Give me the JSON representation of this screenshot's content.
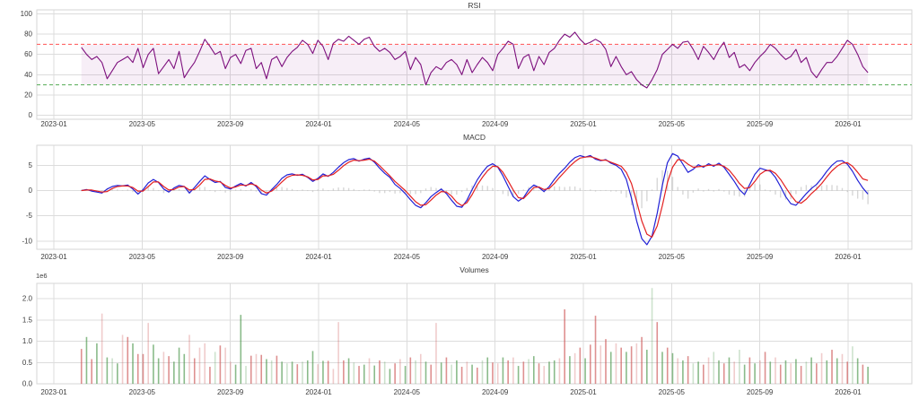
{
  "page": {
    "background": "#ffffff"
  },
  "axes": {
    "text_color": "#3c3c3c",
    "grid_color": "#dcdcdc",
    "spine_color": "#d6d6d6",
    "x_tick_labels": [
      "2023-01",
      "2023-05",
      "2023-09",
      "2024-01",
      "2024-05",
      "2024-09",
      "2025-01",
      "2025-05",
      "2025-09",
      "2026-01"
    ],
    "x_tick_months": [
      0,
      4,
      8,
      12,
      16,
      20,
      24,
      28,
      32,
      36
    ],
    "data_start_month": 1.25,
    "data_end_month": 36.9
  },
  "chart_data": [
    {
      "type": "line",
      "title": "RSI",
      "ylim": [
        -4,
        104
      ],
      "ytick_values": [
        0,
        20,
        40,
        60,
        80,
        100
      ],
      "ytick_labels": [
        "0",
        "20",
        "40",
        "60",
        "80",
        "100"
      ],
      "overbought_level": 70,
      "oversold_level": 30,
      "band": [
        30,
        70
      ],
      "colors": {
        "line": "#7d0f7d",
        "overbought": "#ff6666",
        "oversold": "#66b366",
        "band": "rgba(140,20,140,0.07)"
      },
      "values": [
        67,
        60,
        55,
        58,
        52,
        36,
        44,
        52,
        55,
        58,
        52,
        66,
        47,
        60,
        66,
        41,
        48,
        55,
        46,
        63,
        37,
        45,
        52,
        63,
        75,
        68,
        60,
        63,
        46,
        57,
        60,
        51,
        64,
        66,
        46,
        52,
        36,
        55,
        58,
        48,
        57,
        63,
        67,
        74,
        70,
        61,
        74,
        68,
        55,
        71,
        75,
        73,
        78,
        74,
        70,
        75,
        77,
        68,
        63,
        66,
        62,
        55,
        58,
        63,
        45,
        57,
        50,
        30,
        42,
        48,
        45,
        52,
        55,
        50,
        40,
        55,
        42,
        50,
        57,
        52,
        44,
        60,
        66,
        73,
        70,
        46,
        57,
        60,
        44,
        58,
        50,
        62,
        66,
        74,
        80,
        77,
        82,
        75,
        70,
        72,
        75,
        72,
        65,
        48,
        58,
        48,
        40,
        43,
        35,
        30,
        27,
        35,
        45,
        60,
        65,
        70,
        66,
        72,
        73,
        65,
        55,
        68,
        62,
        55,
        65,
        72,
        57,
        62,
        47,
        50,
        44,
        52,
        58,
        63,
        70,
        66,
        60,
        55,
        58,
        65,
        52,
        57,
        43,
        37,
        45,
        52,
        52,
        58,
        66,
        74,
        70,
        60,
        48,
        42
      ]
    },
    {
      "type": "line",
      "title": "MACD",
      "ylim": [
        -11.6,
        8.94
      ],
      "ytick_values": [
        -10,
        -5,
        0,
        5
      ],
      "ytick_labels": [
        "-10",
        "-5",
        "0",
        "5"
      ],
      "hist_color": "rgba(140,140,140,0.35)",
      "series": [
        {
          "name": "macd",
          "color": "#2121d6",
          "values": [
            0.0,
            0.2,
            -0.1,
            -0.3,
            -0.5,
            0.3,
            0.8,
            1.0,
            0.9,
            1.1,
            0.3,
            -0.7,
            0.2,
            1.5,
            2.2,
            1.6,
            0.3,
            -0.3,
            0.5,
            1.0,
            0.8,
            -0.5,
            0.6,
            1.8,
            2.9,
            2.2,
            1.6,
            1.8,
            0.6,
            0.3,
            0.9,
            1.4,
            0.9,
            1.6,
            0.8,
            -0.6,
            -0.9,
            0.2,
            1.2,
            2.4,
            3.1,
            3.3,
            3.0,
            3.2,
            2.6,
            1.8,
            2.4,
            3.3,
            2.8,
            3.6,
            4.6,
            5.5,
            6.1,
            6.3,
            5.8,
            6.2,
            6.4,
            5.6,
            4.4,
            3.4,
            2.6,
            1.2,
            0.4,
            -0.6,
            -1.8,
            -2.9,
            -3.4,
            -2.4,
            -1.2,
            -0.4,
            0.3,
            -0.6,
            -1.9,
            -3.1,
            -3.3,
            -1.9,
            0.2,
            2.1,
            3.6,
            4.8,
            5.3,
            4.6,
            2.9,
            0.8,
            -1.2,
            -2.1,
            -1.4,
            0.2,
            1.1,
            0.6,
            -0.2,
            0.8,
            2.2,
            3.4,
            4.4,
            5.6,
            6.5,
            6.9,
            6.6,
            6.9,
            6.2,
            5.9,
            6.1,
            5.4,
            5.0,
            4.2,
            2.2,
            -1.5,
            -6.0,
            -9.5,
            -10.7,
            -9.0,
            -4.5,
            1.0,
            5.5,
            7.3,
            6.8,
            5.2,
            3.6,
            4.2,
            5.1,
            4.6,
            5.3,
            4.8,
            5.4,
            4.6,
            3.2,
            1.8,
            0.2,
            -0.8,
            1.2,
            3.2,
            4.4,
            4.1,
            3.8,
            2.6,
            0.8,
            -1.2,
            -2.6,
            -2.9,
            -1.8,
            -0.6,
            0.4,
            1.2,
            2.4,
            3.8,
            5.0,
            5.8,
            5.9,
            5.2,
            3.8,
            2.0,
            0.5,
            -0.7
          ]
        },
        {
          "name": "signal",
          "color": "#e32020",
          "values": [
            0.0,
            0.1,
            0.1,
            -0.1,
            -0.3,
            -0.2,
            0.4,
            0.8,
            0.9,
            0.9,
            0.6,
            -0.1,
            -0.1,
            0.8,
            1.7,
            1.7,
            0.8,
            0.1,
            0.2,
            0.7,
            0.8,
            0.1,
            0.2,
            1.1,
            2.2,
            2.3,
            1.9,
            1.7,
            1.0,
            0.5,
            0.7,
            1.1,
            1.0,
            1.3,
            1.0,
            0.1,
            -0.5,
            -0.1,
            0.7,
            1.7,
            2.6,
            3.0,
            3.1,
            3.0,
            2.7,
            2.1,
            2.2,
            2.9,
            2.9,
            3.2,
            4.0,
            4.9,
            5.6,
            6.0,
            5.9,
            6.0,
            6.2,
            5.8,
            4.9,
            3.9,
            2.9,
            1.8,
            0.9,
            0.0,
            -1.1,
            -2.2,
            -2.9,
            -2.8,
            -1.9,
            -0.9,
            -0.2,
            -0.3,
            -1.1,
            -2.3,
            -3.0,
            -2.4,
            -0.8,
            1.1,
            2.6,
            3.9,
            4.8,
            4.7,
            3.6,
            1.9,
            0.1,
            -1.4,
            -1.6,
            -0.5,
            0.6,
            0.7,
            0.2,
            0.4,
            1.4,
            2.6,
            3.7,
            4.8,
            5.7,
            6.4,
            6.6,
            6.7,
            6.4,
            6.0,
            6.0,
            5.6,
            5.2,
            4.8,
            3.6,
            1.4,
            -2.2,
            -6.0,
            -8.6,
            -9.2,
            -7.0,
            -3.0,
            1.6,
            4.6,
            6.1,
            6.0,
            5.2,
            4.6,
            4.7,
            4.8,
            5.0,
            5.0,
            5.1,
            4.8,
            4.0,
            2.8,
            1.4,
            0.4,
            0.6,
            1.8,
            3.2,
            3.9,
            4.0,
            3.4,
            2.2,
            0.6,
            -0.9,
            -2.2,
            -2.5,
            -1.7,
            -0.6,
            0.3,
            1.4,
            2.7,
            3.9,
            4.8,
            5.4,
            5.5,
            4.8,
            3.6,
            2.3,
            2.0
          ]
        }
      ]
    },
    {
      "type": "bar",
      "title": "Volumes",
      "offset_label": "1e6",
      "ylim": [
        0,
        2.36
      ],
      "ytick_values": [
        0,
        0.5,
        1.0,
        1.5,
        2.0
      ],
      "ytick_labels": [
        "0.0",
        "0.5",
        "1.0",
        "1.5",
        "2.0"
      ],
      "bar_colors": {
        "R": "rgba(205,85,85,0.65)",
        "r": "rgba(205,85,85,0.30)",
        "G": "rgba(75,150,75,0.65)",
        "g": "rgba(75,150,75,0.28)"
      },
      "values": [
        0.82,
        1.1,
        0.58,
        0.95,
        1.65,
        0.62,
        0.6,
        0.48,
        1.15,
        1.1,
        0.95,
        0.7,
        0.7,
        1.43,
        0.92,
        0.6,
        0.75,
        0.65,
        0.52,
        0.85,
        0.7,
        1.15,
        0.6,
        0.85,
        0.95,
        0.4,
        0.75,
        0.9,
        0.85,
        0.52,
        0.45,
        1.62,
        0.42,
        0.66,
        0.7,
        0.68,
        0.58,
        0.55,
        0.66,
        0.52,
        0.48,
        0.52,
        0.46,
        0.52,
        0.55,
        0.77,
        0.46,
        0.54,
        0.54,
        0.35,
        1.45,
        0.55,
        0.6,
        0.5,
        0.42,
        0.45,
        0.6,
        0.43,
        0.55,
        0.52,
        0.35,
        0.48,
        0.58,
        0.42,
        0.62,
        0.55,
        0.7,
        0.52,
        0.45,
        1.43,
        0.5,
        0.62,
        0.45,
        0.55,
        0.4,
        0.52,
        0.45,
        0.38,
        0.55,
        0.62,
        0.5,
        0.48,
        0.62,
        0.55,
        0.62,
        0.42,
        0.52,
        0.58,
        0.65,
        0.48,
        0.42,
        0.52,
        0.55,
        0.6,
        1.75,
        0.65,
        0.72,
        0.85,
        0.6,
        0.92,
        1.6,
        0.9,
        1.05,
        0.75,
        0.95,
        0.85,
        0.75,
        0.88,
        0.95,
        1.1,
        0.8,
        2.25,
        1.45,
        0.75,
        0.85,
        0.72,
        0.6,
        0.55,
        0.65,
        0.48,
        0.52,
        0.45,
        0.62,
        0.75,
        0.55,
        0.48,
        0.62,
        0.52,
        0.8,
        0.45,
        0.62,
        0.48,
        0.55,
        0.75,
        0.52,
        0.62,
        0.45,
        0.55,
        0.48,
        0.58,
        0.42,
        0.52,
        0.62,
        0.48,
        0.72,
        0.55,
        0.8,
        0.6,
        0.7,
        0.52,
        0.88,
        0.6,
        0.45,
        0.4
      ],
      "colors": "RGRGrGgGrRGRRrGGrRGGGrRrrRgRrrGGgRrRGgRGgGRgGGrGRrrRGgRGrGRgGRrGRgrGRrGRgGRrGRgGRrGRrGRgGRrGGrRGrRGRRrRGrRGRrRGgRGRGrGRgGRrgGRGrgGRGrRGrRGrGRgGRrGRGrRgGRG"
    }
  ]
}
